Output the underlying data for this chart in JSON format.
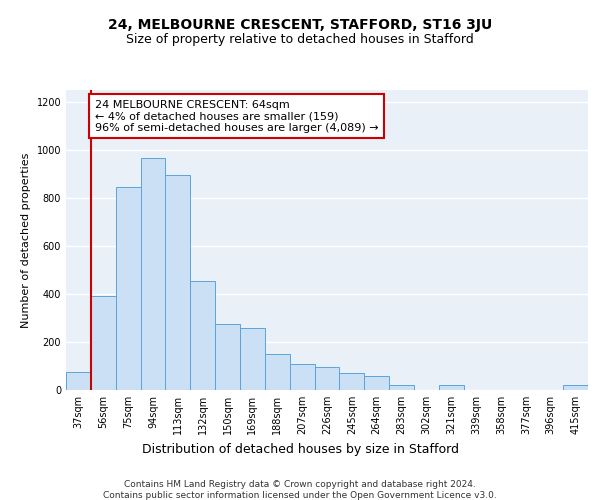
{
  "title1": "24, MELBOURNE CRESCENT, STAFFORD, ST16 3JU",
  "title2": "Size of property relative to detached houses in Stafford",
  "xlabel": "Distribution of detached houses by size in Stafford",
  "ylabel": "Number of detached properties",
  "footnote1": "Contains HM Land Registry data © Crown copyright and database right 2024.",
  "footnote2": "Contains public sector information licensed under the Open Government Licence v3.0.",
  "annotation_line1": "24 MELBOURNE CRESCENT: 64sqm",
  "annotation_line2": "← 4% of detached houses are smaller (159)",
  "annotation_line3": "96% of semi-detached houses are larger (4,089) →",
  "bar_color": "#cce0f5",
  "bar_edge_color": "#5ba3d9",
  "marker_line_color": "#cc0000",
  "annotation_box_edge_color": "#cc0000",
  "background_color": "#eaf0f8",
  "categories": [
    "37sqm",
    "56sqm",
    "75sqm",
    "94sqm",
    "113sqm",
    "132sqm",
    "150sqm",
    "169sqm",
    "188sqm",
    "207sqm",
    "226sqm",
    "245sqm",
    "264sqm",
    "283sqm",
    "302sqm",
    "321sqm",
    "339sqm",
    "358sqm",
    "377sqm",
    "396sqm",
    "415sqm"
  ],
  "values": [
    75,
    390,
    845,
    965,
    895,
    455,
    275,
    260,
    150,
    110,
    95,
    70,
    60,
    20,
    0,
    20,
    0,
    0,
    0,
    0,
    20
  ],
  "ylim": [
    0,
    1250
  ],
  "yticks": [
    0,
    200,
    400,
    600,
    800,
    1000,
    1200
  ],
  "marker_bar_index": 1,
  "title1_fontsize": 10,
  "title2_fontsize": 9,
  "xlabel_fontsize": 9,
  "ylabel_fontsize": 8,
  "tick_fontsize": 7,
  "annotation_fontsize": 8,
  "footnote_fontsize": 6.5
}
